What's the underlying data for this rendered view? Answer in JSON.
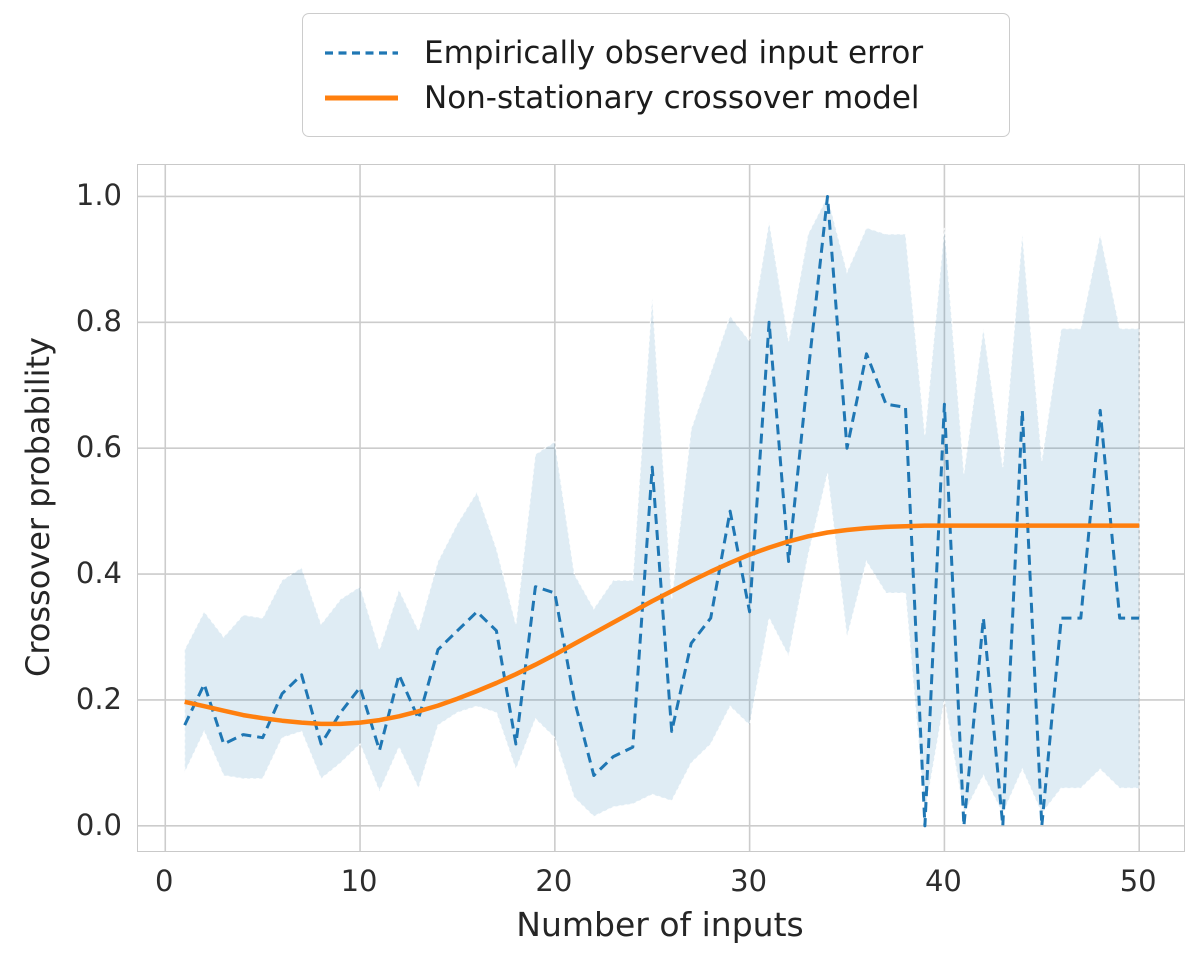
{
  "figure": {
    "background": "#ffffff"
  },
  "legend": {
    "items": [
      {
        "label": "Empirically observed input error",
        "style": "dashed",
        "color": "#1f77b4"
      },
      {
        "label": "Non-stationary crossover model",
        "style": "solid",
        "color": "#ff7f0e"
      }
    ]
  },
  "chart_data": {
    "type": "line",
    "title": "",
    "xlabel": "Number of inputs",
    "ylabel": "Crossover probability",
    "xlim": [
      -1.4,
      52.3
    ],
    "ylim": [
      -0.04,
      1.05
    ],
    "x_ticks": [
      0,
      10,
      20,
      30,
      40,
      50
    ],
    "y_ticks": [
      0.0,
      0.2,
      0.4,
      0.6,
      0.8,
      1.0
    ],
    "grid": true,
    "grid_color": "#cccccc",
    "legend_position": "above-axes-center",
    "x": [
      1,
      2,
      3,
      4,
      5,
      6,
      7,
      8,
      9,
      10,
      11,
      12,
      13,
      14,
      15,
      16,
      17,
      18,
      19,
      20,
      21,
      22,
      23,
      24,
      25,
      26,
      27,
      28,
      29,
      30,
      31,
      32,
      33,
      34,
      35,
      36,
      37,
      38,
      39,
      40,
      41,
      42,
      43,
      44,
      45,
      46,
      47,
      48,
      49,
      50
    ],
    "series": [
      {
        "name": "Empirically observed input error",
        "style": "dashed",
        "color": "#1f77b4",
        "linewidth": 3,
        "values": [
          0.16,
          0.225,
          0.13,
          0.145,
          0.14,
          0.21,
          0.24,
          0.13,
          0.18,
          0.22,
          0.12,
          0.24,
          0.17,
          0.28,
          0.31,
          0.34,
          0.31,
          0.13,
          0.38,
          0.37,
          0.2,
          0.08,
          0.11,
          0.125,
          0.57,
          0.15,
          0.29,
          0.33,
          0.5,
          0.34,
          0.8,
          0.42,
          0.72,
          1.0,
          0.6,
          0.75,
          0.67,
          0.665,
          0.0,
          0.67,
          0.0,
          0.33,
          0.0,
          0.66,
          0.0,
          0.33,
          0.33,
          0.66,
          0.33,
          0.33
        ]
      },
      {
        "name": "Non-stationary crossover model",
        "style": "solid",
        "color": "#ff7f0e",
        "linewidth": 4.5,
        "values": [
          0.197,
          0.19,
          0.183,
          0.176,
          0.171,
          0.167,
          0.164,
          0.162,
          0.162,
          0.164,
          0.168,
          0.174,
          0.182,
          0.191,
          0.202,
          0.214,
          0.227,
          0.241,
          0.256,
          0.272,
          0.289,
          0.306,
          0.323,
          0.34,
          0.357,
          0.373,
          0.389,
          0.404,
          0.418,
          0.431,
          0.442,
          0.452,
          0.46,
          0.466,
          0.47,
          0.473,
          0.475,
          0.476,
          0.477,
          0.477,
          0.477,
          0.477,
          0.477,
          0.477,
          0.477,
          0.477,
          0.477,
          0.477,
          0.477,
          0.477
        ]
      }
    ],
    "band": {
      "name": "empirical-confidence-band",
      "color": "#1f77b4",
      "opacity": 0.14,
      "upper": [
        0.28,
        0.34,
        0.3,
        0.335,
        0.33,
        0.39,
        0.41,
        0.32,
        0.36,
        0.38,
        0.28,
        0.375,
        0.31,
        0.42,
        0.48,
        0.53,
        0.44,
        0.32,
        0.59,
        0.61,
        0.4,
        0.345,
        0.39,
        0.39,
        0.84,
        0.36,
        0.63,
        0.72,
        0.81,
        0.77,
        0.96,
        0.77,
        0.94,
        1.0,
        0.88,
        0.95,
        0.94,
        0.94,
        0.62,
        0.95,
        0.56,
        0.79,
        0.57,
        0.94,
        0.58,
        0.79,
        0.79,
        0.94,
        0.79,
        0.79
      ],
      "lower": [
        0.085,
        0.15,
        0.08,
        0.075,
        0.075,
        0.14,
        0.15,
        0.075,
        0.1,
        0.13,
        0.055,
        0.125,
        0.06,
        0.16,
        0.18,
        0.19,
        0.18,
        0.09,
        0.17,
        0.14,
        0.045,
        0.015,
        0.03,
        0.035,
        0.05,
        0.04,
        0.1,
        0.13,
        0.19,
        0.16,
        0.33,
        0.27,
        0.43,
        0.56,
        0.3,
        0.42,
        0.37,
        0.37,
        0.02,
        0.2,
        0.02,
        0.08,
        0.02,
        0.09,
        0.02,
        0.06,
        0.06,
        0.09,
        0.06,
        0.06
      ]
    }
  }
}
